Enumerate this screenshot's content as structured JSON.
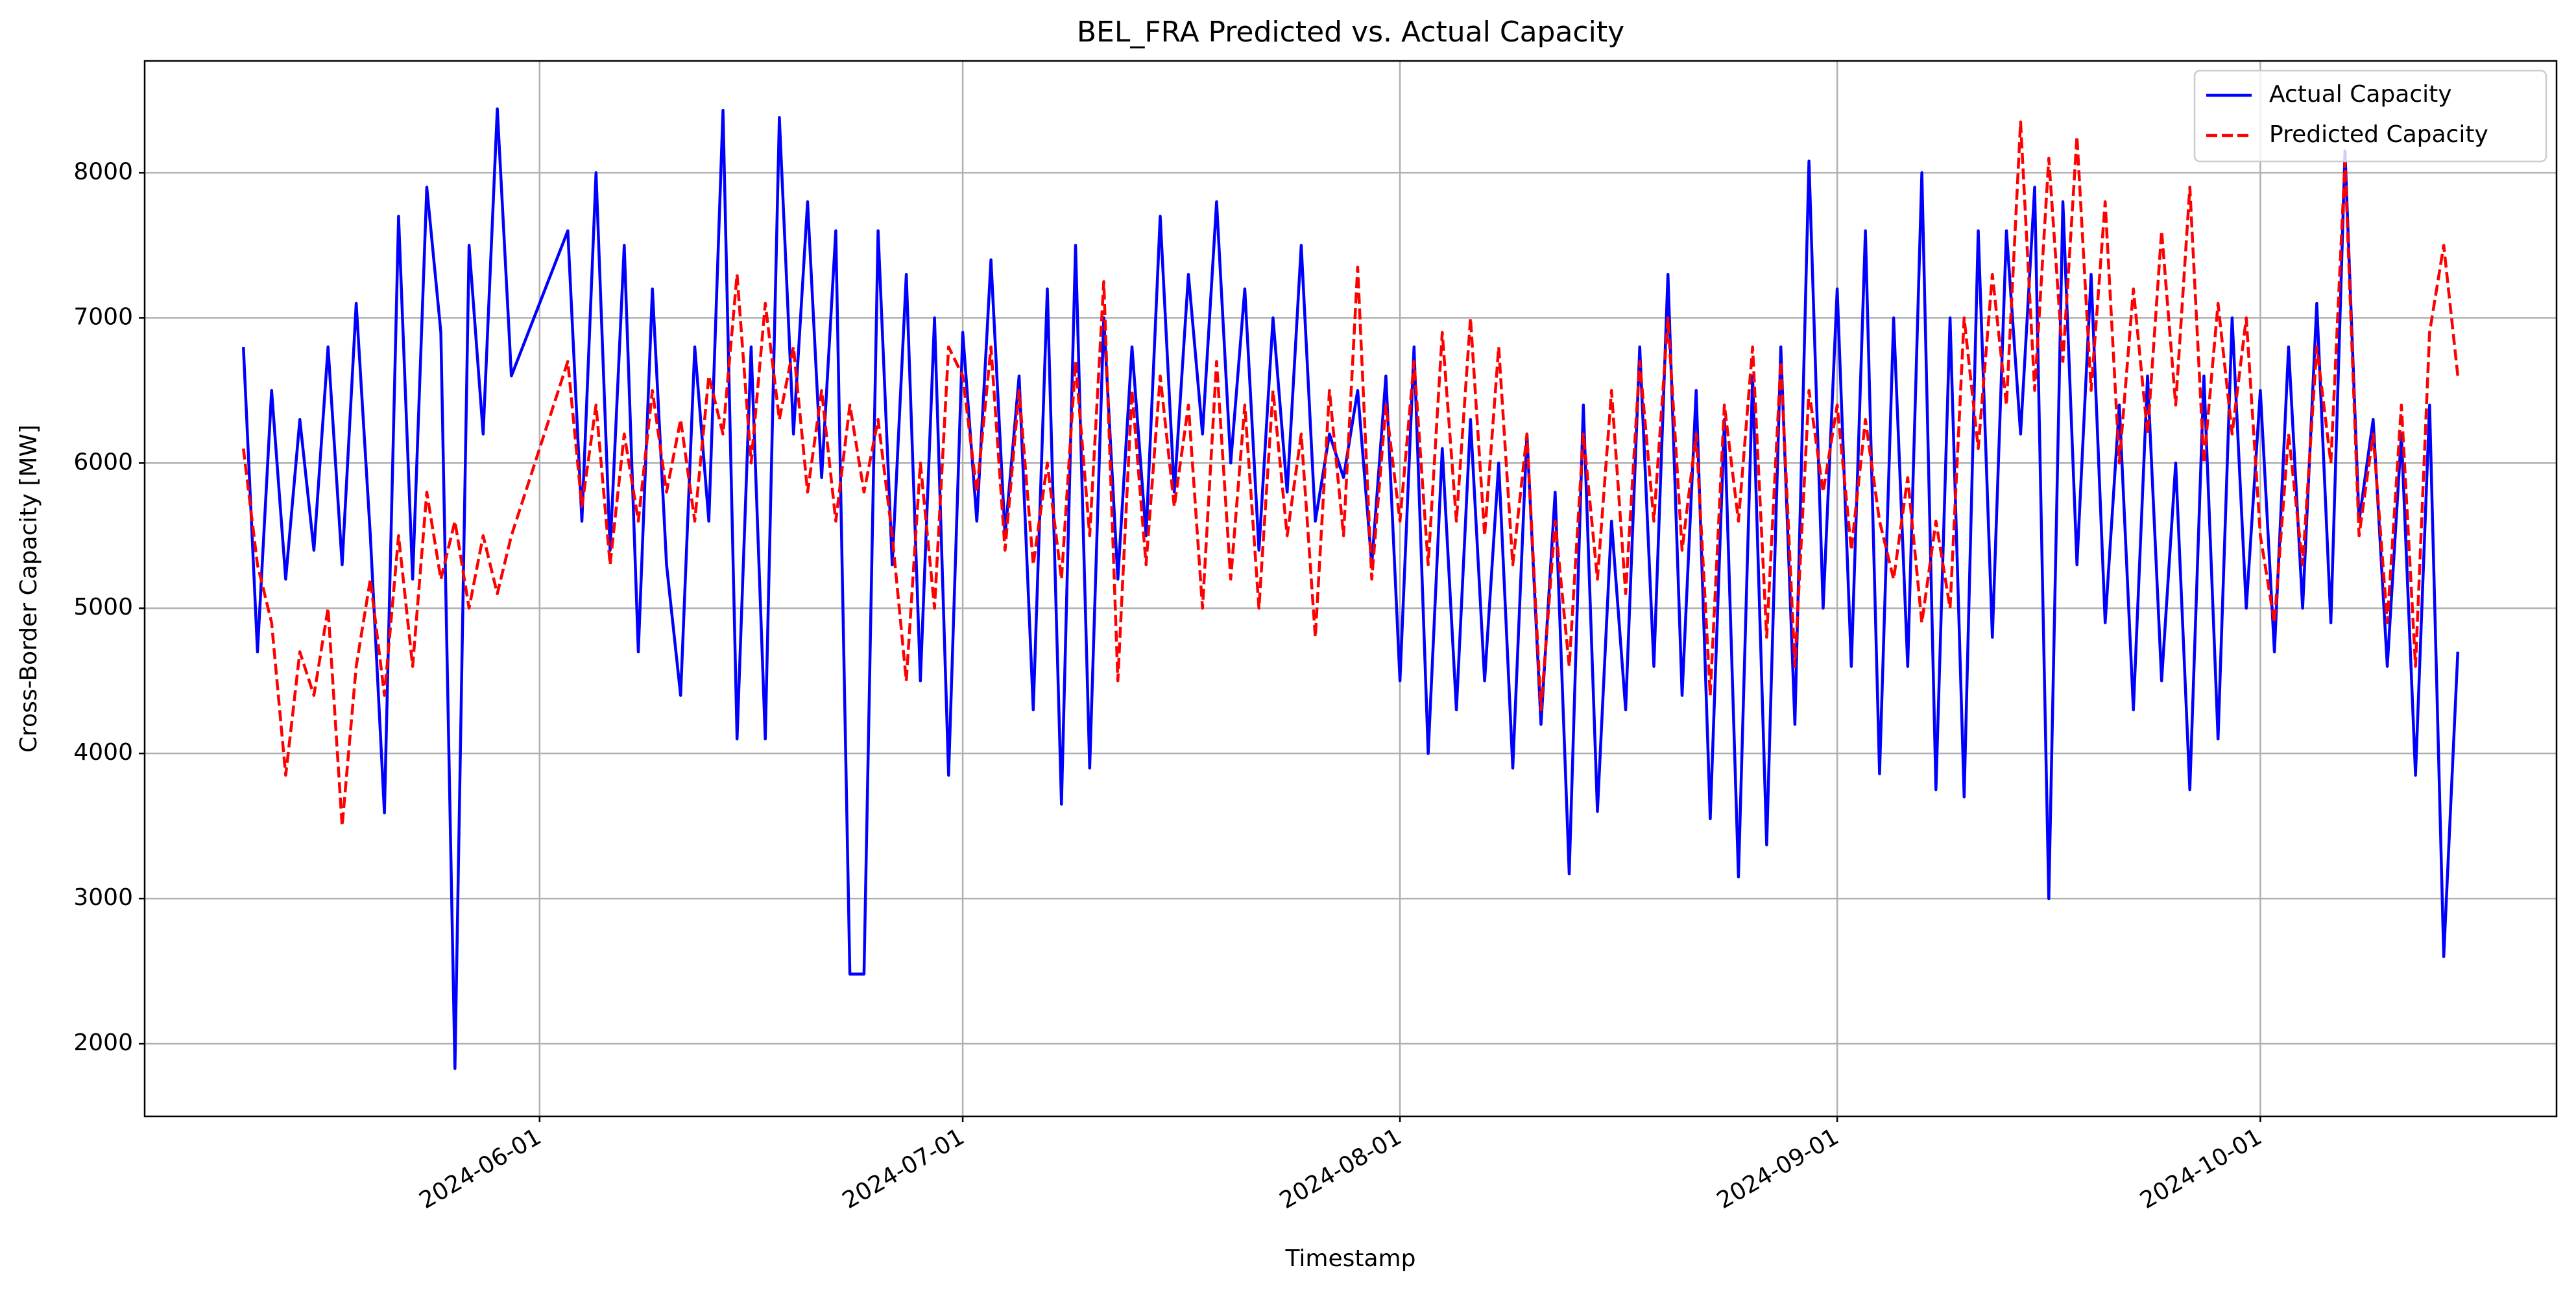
{
  "chart_data": {
    "type": "line",
    "title": "BEL_FRA Predicted vs. Actual Capacity",
    "x_label": "Timestamp",
    "y_label": "Cross-Border Capacity [MW]",
    "x": [
      "2024-05-11",
      "2024-05-12",
      "2024-05-13",
      "2024-05-14",
      "2024-05-15",
      "2024-05-16",
      "2024-05-17",
      "2024-05-18",
      "2024-05-19",
      "2024-05-20",
      "2024-05-21",
      "2024-05-22",
      "2024-05-23",
      "2024-05-24",
      "2024-05-25",
      "2024-05-26",
      "2024-05-27",
      "2024-05-28",
      "2024-05-29",
      "2024-05-30",
      "2024-06-03",
      "2024-06-04",
      "2024-06-05",
      "2024-06-06",
      "2024-06-07",
      "2024-06-08",
      "2024-06-09",
      "2024-06-10",
      "2024-06-11",
      "2024-06-12",
      "2024-06-13",
      "2024-06-14",
      "2024-06-15",
      "2024-06-16",
      "2024-06-17",
      "2024-06-18",
      "2024-06-19",
      "2024-06-20",
      "2024-06-21",
      "2024-06-22",
      "2024-06-23",
      "2024-06-24",
      "2024-06-25",
      "2024-06-26",
      "2024-06-27",
      "2024-06-28",
      "2024-06-29",
      "2024-06-30",
      "2024-07-01",
      "2024-07-02",
      "2024-07-03",
      "2024-07-04",
      "2024-07-05",
      "2024-07-06",
      "2024-07-07",
      "2024-07-08",
      "2024-07-09",
      "2024-07-10",
      "2024-07-11",
      "2024-07-12",
      "2024-07-13",
      "2024-07-14",
      "2024-07-15",
      "2024-07-16",
      "2024-07-17",
      "2024-07-18",
      "2024-07-19",
      "2024-07-20",
      "2024-07-21",
      "2024-07-22",
      "2024-07-23",
      "2024-07-24",
      "2024-07-25",
      "2024-07-26",
      "2024-07-27",
      "2024-07-28",
      "2024-07-29",
      "2024-07-30",
      "2024-07-31",
      "2024-08-01",
      "2024-08-02",
      "2024-08-03",
      "2024-08-04",
      "2024-08-05",
      "2024-08-06",
      "2024-08-07",
      "2024-08-08",
      "2024-08-09",
      "2024-08-10",
      "2024-08-11",
      "2024-08-12",
      "2024-08-13",
      "2024-08-14",
      "2024-08-15",
      "2024-08-16",
      "2024-08-17",
      "2024-08-18",
      "2024-08-19",
      "2024-08-20",
      "2024-08-21",
      "2024-08-22",
      "2024-08-23",
      "2024-08-24",
      "2024-08-25",
      "2024-08-26",
      "2024-08-27",
      "2024-08-28",
      "2024-08-29",
      "2024-08-30",
      "2024-08-31",
      "2024-09-01",
      "2024-09-02",
      "2024-09-03",
      "2024-09-04",
      "2024-09-05",
      "2024-09-06",
      "2024-09-07",
      "2024-09-08",
      "2024-09-09",
      "2024-09-10",
      "2024-09-11",
      "2024-09-12",
      "2024-09-13",
      "2024-09-14",
      "2024-09-15",
      "2024-09-16",
      "2024-09-17",
      "2024-09-18",
      "2024-09-19",
      "2024-09-20",
      "2024-09-21",
      "2024-09-22",
      "2024-09-23",
      "2024-09-24",
      "2024-09-25",
      "2024-09-26",
      "2024-09-27",
      "2024-09-28",
      "2024-09-29",
      "2024-09-30",
      "2024-10-01",
      "2024-10-02",
      "2024-10-03",
      "2024-10-04",
      "2024-10-05",
      "2024-10-06",
      "2024-10-07",
      "2024-10-08",
      "2024-10-09",
      "2024-10-10",
      "2024-10-11",
      "2024-10-12",
      "2024-10-13",
      "2024-10-14",
      "2024-10-15"
    ],
    "series": [
      {
        "name": "Actual Capacity",
        "color": "#0000ff",
        "dash": false,
        "values": [
          6800,
          4700,
          6500,
          5200,
          6300,
          5400,
          6800,
          5300,
          7100,
          5500,
          3590,
          7700,
          5200,
          7900,
          6900,
          1830,
          7500,
          6200,
          8440,
          6600,
          7600,
          5600,
          8000,
          5400,
          7500,
          4700,
          7200,
          5300,
          4400,
          6800,
          5600,
          8430,
          4100,
          6800,
          4100,
          8380,
          6200,
          7800,
          5900,
          7600,
          2480,
          2480,
          7600,
          5300,
          7300,
          4500,
          7000,
          3850,
          6900,
          5600,
          7400,
          5500,
          6600,
          4300,
          7200,
          3650,
          7500,
          3900,
          7000,
          5200,
          6800,
          5500,
          7700,
          5800,
          7300,
          6200,
          7800,
          6000,
          7200,
          5400,
          7000,
          5800,
          7500,
          5600,
          6200,
          5900,
          6500,
          5300,
          6600,
          4500,
          6800,
          4000,
          6100,
          4300,
          6300,
          4500,
          6000,
          3900,
          6200,
          4200,
          5800,
          3170,
          6400,
          3600,
          5600,
          4300,
          6800,
          4600,
          7300,
          4400,
          6500,
          3550,
          6300,
          3150,
          6600,
          3370,
          6800,
          4200,
          8080,
          5000,
          7200,
          4600,
          7600,
          3860,
          7000,
          4600,
          8000,
          3750,
          7000,
          3700,
          7600,
          4800,
          7600,
          6200,
          7900,
          3000,
          7800,
          5300,
          7300,
          4900,
          6400,
          4300,
          6600,
          4500,
          6000,
          3750,
          6600,
          4100,
          7000,
          5000,
          6500,
          4700,
          6800,
          5000,
          7100,
          4900,
          8150,
          5600,
          6300,
          4600,
          6200,
          3850,
          6400,
          2600,
          4700
        ]
      },
      {
        "name": "Predicted Capacity",
        "color": "#ff0000",
        "dash": true,
        "values": [
          6100,
          5300,
          4900,
          3850,
          4700,
          4400,
          5000,
          3500,
          4600,
          5200,
          4400,
          5500,
          4600,
          5800,
          5200,
          5600,
          5000,
          5500,
          5100,
          5500,
          6700,
          5700,
          6400,
          5300,
          6200,
          5600,
          6500,
          5800,
          6300,
          5600,
          6600,
          6200,
          7300,
          6000,
          7100,
          6300,
          6800,
          5800,
          6500,
          5600,
          6400,
          5800,
          6300,
          5500,
          4500,
          6000,
          5000,
          6800,
          6600,
          5800,
          6800,
          5400,
          6500,
          5300,
          6000,
          5200,
          6700,
          5500,
          7250,
          4500,
          6500,
          5300,
          6600,
          5700,
          6400,
          5000,
          6700,
          5200,
          6400,
          5000,
          6500,
          5500,
          6200,
          4800,
          6500,
          5500,
          7350,
          5200,
          6400,
          5600,
          6700,
          5300,
          6900,
          5600,
          7000,
          5500,
          6800,
          5300,
          6200,
          4300,
          5600,
          4600,
          6200,
          5200,
          6500,
          5100,
          6700,
          5600,
          7000,
          5400,
          6200,
          4400,
          6400,
          5600,
          6800,
          4800,
          6700,
          4600,
          6500,
          5800,
          6400,
          5400,
          6300,
          5600,
          5200,
          5900,
          4900,
          5600,
          5000,
          7000,
          6100,
          7300,
          6400,
          8350,
          6500,
          8100,
          6700,
          8250,
          6500,
          7800,
          6000,
          7200,
          6200,
          7600,
          6400,
          7900,
          6000,
          7100,
          6200,
          7000,
          5500,
          4900,
          6200,
          5300,
          6800,
          6000,
          8080,
          5500,
          6200,
          4900,
          6400,
          4600,
          6900,
          7500,
          6600
        ]
      }
    ],
    "xlim": [
      "2024-05-04",
      "2024-10-22"
    ],
    "xticks": [
      "2024-06-01",
      "2024-07-01",
      "2024-08-01",
      "2024-09-01",
      "2024-10-01"
    ],
    "ylim": [
      1500,
      8770
    ],
    "yticks": [
      2000,
      3000,
      4000,
      5000,
      6000,
      7000,
      8000
    ],
    "grid": true,
    "legend": "upper right"
  }
}
